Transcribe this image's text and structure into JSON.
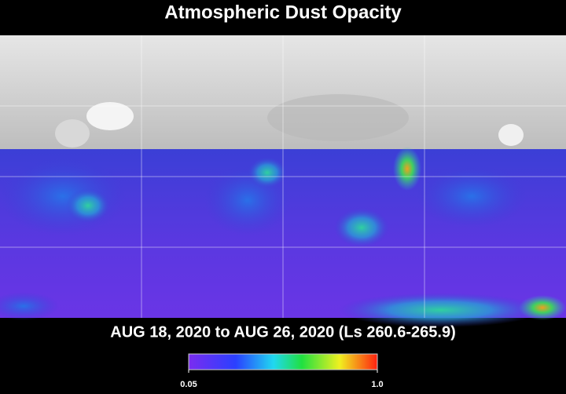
{
  "title": "Atmospheric Dust Opacity",
  "subtitle": "AUG 18, 2020 to AUG 26, 2020 (Ls 260.6-265.9)",
  "colorbar": {
    "ticks": [
      0.05,
      {
        "value": 1.0,
        "label": "1.0"
      }
    ]
  }
}
